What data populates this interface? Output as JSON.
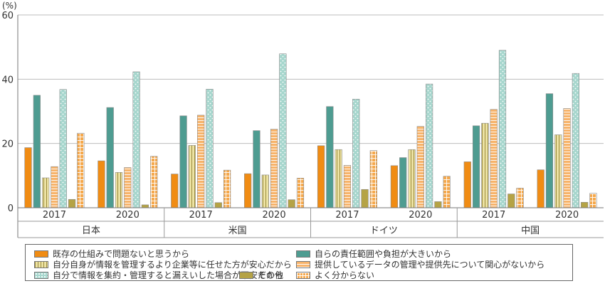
{
  "chart_data": {
    "type": "bar",
    "unit": "(%)",
    "ylim": [
      0,
      60
    ],
    "yticks": [
      0,
      20,
      40,
      60
    ],
    "groups": [
      {
        "country": "日本",
        "years": [
          "2017",
          "2020"
        ]
      },
      {
        "country": "米国",
        "years": [
          "2017",
          "2020"
        ]
      },
      {
        "country": "ドイツ",
        "years": [
          "2017",
          "2020"
        ]
      },
      {
        "country": "中国",
        "years": [
          "2017",
          "2020"
        ]
      }
    ],
    "series": [
      {
        "name": "既存の仕組みで問題ないと思うから",
        "color": "#f08c14",
        "pattern": "solid",
        "values": [
          18.7,
          14.6,
          10.5,
          10.6,
          19.3,
          13.1,
          14.3,
          11.8
        ]
      },
      {
        "name": "自らの責任範囲や負担が大きいから",
        "color": "#4e9c91",
        "pattern": "solid",
        "values": [
          35.0,
          31.2,
          28.6,
          24.0,
          31.5,
          15.6,
          25.5,
          35.5
        ]
      },
      {
        "name": "自分自身が情報を管理するより企業等に任せた方が安心だから",
        "color": "#e9e0a3",
        "pattern": "vlines",
        "values": [
          9.3,
          11.0,
          19.4,
          10.2,
          18.1,
          18.1,
          26.3,
          22.7
        ]
      },
      {
        "name": "提供しているデータの管理や提供先について関心がないから",
        "color": "#f7b36a",
        "pattern": "hlines",
        "values": [
          12.8,
          12.5,
          28.8,
          24.5,
          13.2,
          25.3,
          30.6,
          30.9
        ]
      },
      {
        "name": "自分で情報を集約・管理すると漏えいした場合が不安だから",
        "color": "#a9d7cf",
        "pattern": "dots",
        "values": [
          36.8,
          42.3,
          36.9,
          47.9,
          33.8,
          38.5,
          49.0,
          41.8
        ]
      },
      {
        "name": "その他",
        "color": "#b5a345",
        "pattern": "solid",
        "values": [
          2.6,
          0.9,
          1.6,
          2.5,
          5.7,
          1.9,
          4.3,
          1.7
        ]
      },
      {
        "name": "よく分からない",
        "color": "#f5a84c",
        "pattern": "grid",
        "values": [
          23.2,
          16.0,
          11.7,
          9.2,
          17.8,
          9.8,
          6.1,
          4.5
        ]
      }
    ],
    "legend": {
      "placement": "bottom",
      "order": [
        0,
        1,
        2,
        3,
        4,
        5,
        6
      ]
    }
  }
}
